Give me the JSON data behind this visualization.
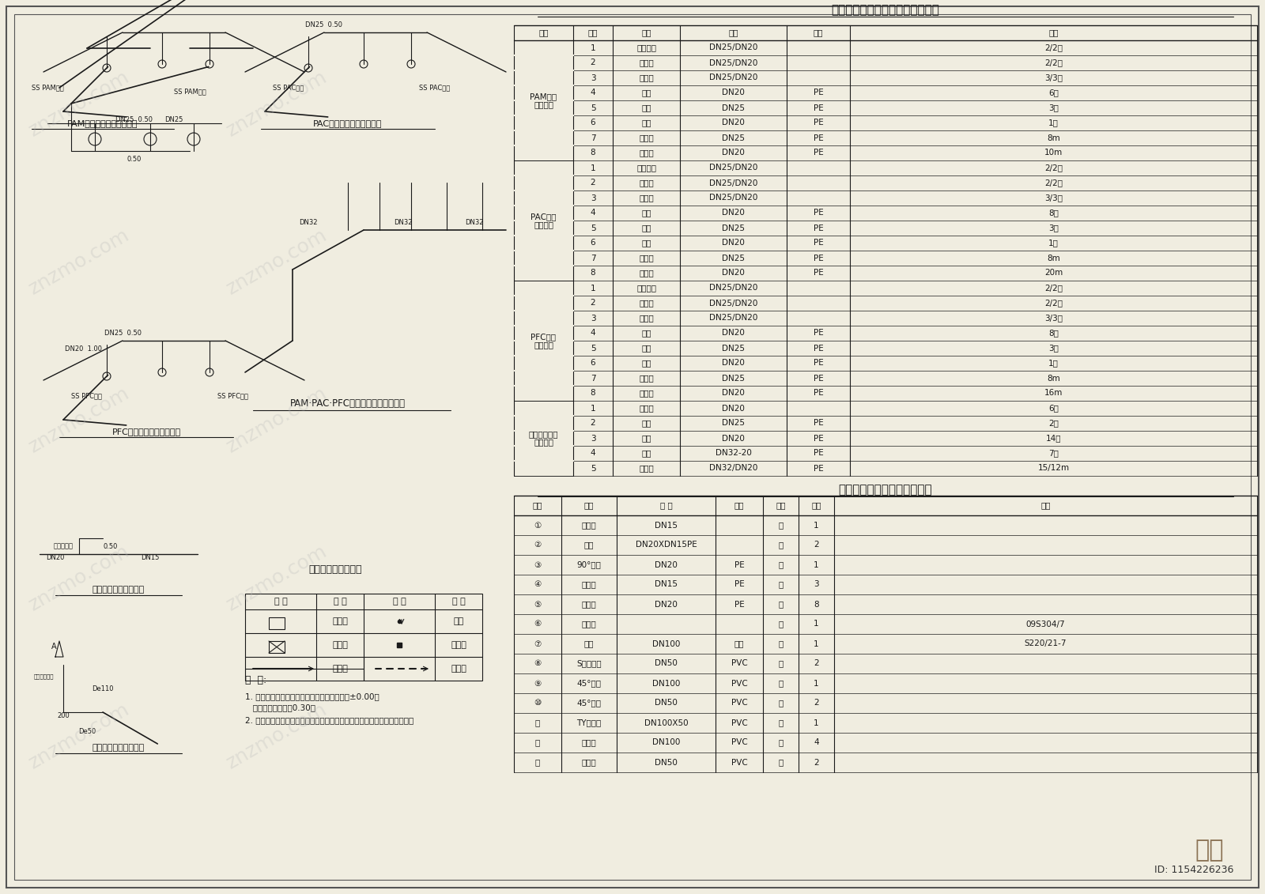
{
  "title": "加药间各管道安装系统主要材料表",
  "title2": "加药间给排水管道主要材料表",
  "bg_color": "#f0ede0",
  "line_color": "#1a1a1a",
  "table1_title": "加药间各管道安装系统主要材料表",
  "table1_headers": [
    "项目",
    "序号",
    "名称",
    "规格",
    "材质",
    "数量"
  ],
  "table1_rows": [
    [
      "PAM输送\n管道系统",
      "1",
      "挠性接头",
      "DN25/DN20",
      "",
      "2/2个"
    ],
    [
      "",
      "2",
      "止回阀",
      "DN25/DN20",
      "",
      "2/2个"
    ],
    [
      "",
      "3",
      "截止阀",
      "DN25/DN20",
      "",
      "3/3个"
    ],
    [
      "",
      "4",
      "弯头",
      "DN20",
      "PE",
      "6个"
    ],
    [
      "",
      "5",
      "三通",
      "DN25",
      "PE",
      "3个"
    ],
    [
      "",
      "6",
      "三通",
      "DN20",
      "PE",
      "1个"
    ],
    [
      "",
      "7",
      "连接管",
      "DN25",
      "PE",
      "8m"
    ],
    [
      "",
      "8",
      "连接管",
      "DN20",
      "PE",
      "10m"
    ],
    [
      "PAC输送\n管道系统",
      "1",
      "挠性接头",
      "DN25/DN20",
      "",
      "2/2个"
    ],
    [
      "",
      "2",
      "止回阀",
      "DN25/DN20",
      "",
      "2/2个"
    ],
    [
      "",
      "3",
      "截止阀",
      "DN25/DN20",
      "",
      "3/3个"
    ],
    [
      "",
      "4",
      "弯头",
      "DN20",
      "PE",
      "8个"
    ],
    [
      "",
      "5",
      "三通",
      "DN25",
      "PE",
      "3个"
    ],
    [
      "",
      "6",
      "三通",
      "DN20",
      "PE",
      "1个"
    ],
    [
      "",
      "7",
      "连接管",
      "DN25",
      "PE",
      "8m"
    ],
    [
      "",
      "8",
      "连接管",
      "DN20",
      "PE",
      "20m"
    ],
    [
      "PFC输送\n管道系统",
      "1",
      "挠性接头",
      "DN25/DN20",
      "",
      "2/2个"
    ],
    [
      "",
      "2",
      "止回阀",
      "DN25/DN20",
      "",
      "2/2个"
    ],
    [
      "",
      "3",
      "截止阀",
      "DN25/DN20",
      "",
      "3/3个"
    ],
    [
      "",
      "4",
      "弯头",
      "DN20",
      "PE",
      "8个"
    ],
    [
      "",
      "5",
      "三通",
      "DN25",
      "PE",
      "3个"
    ],
    [
      "",
      "6",
      "三通",
      "DN20",
      "PE",
      "1个"
    ],
    [
      "",
      "7",
      "连接管",
      "DN25",
      "PE",
      "8m"
    ],
    [
      "",
      "8",
      "连接管",
      "DN20",
      "PE",
      "16m"
    ],
    [
      "药液配制给水\n管道系统",
      "1",
      "截止阀",
      "DN20",
      "",
      "6个"
    ],
    [
      "",
      "2",
      "弯头",
      "DN25",
      "PE",
      "2个"
    ],
    [
      "",
      "3",
      "弯头",
      "DN20",
      "PE",
      "14个"
    ],
    [
      "",
      "4",
      "三通",
      "DN32-20",
      "PE",
      "7个"
    ],
    [
      "",
      "5",
      "连接管",
      "DN32/DN20",
      "PE",
      "15/12m"
    ]
  ],
  "table2_title": "加药间给排水管道主要材料表",
  "table2_headers": [
    "编号",
    "名称",
    "规 格",
    "材料",
    "单位",
    "数量",
    "备注"
  ],
  "table2_rows": [
    [
      "①",
      "水龙头",
      "DN15",
      "",
      "个",
      "1",
      ""
    ],
    [
      "②",
      "三通",
      "DN20XDN15PE",
      "",
      "个",
      "2",
      ""
    ],
    [
      "③",
      "90°弯头",
      "DN20",
      "PE",
      "个",
      "1",
      ""
    ],
    [
      "④",
      "给水管",
      "DN15",
      "PE",
      "米",
      "3",
      ""
    ],
    [
      "⑤",
      "给水管",
      "DN20",
      "PE",
      "米",
      "8",
      ""
    ],
    [
      "⑥",
      "洗手盆",
      "",
      "",
      "个",
      "1",
      "09S304/7"
    ],
    [
      "⑦",
      "地漏",
      "DN100",
      "铸铁",
      "个",
      "1",
      "S220/21-7"
    ],
    [
      "⑧",
      "S型存水管",
      "DN50",
      "PVC",
      "个",
      "2",
      ""
    ],
    [
      "⑨",
      "45°弯头",
      "DN100",
      "PVC",
      "个",
      "1",
      ""
    ],
    [
      "⑩",
      "45°弯头",
      "DN50",
      "PVC",
      "个",
      "2",
      ""
    ],
    [
      "⑪",
      "TY型三通",
      "DN100X50",
      "PVC",
      "个",
      "1",
      ""
    ],
    [
      "⑫",
      "排水管",
      "DN100",
      "PVC",
      "米",
      "4",
      ""
    ],
    [
      "⑬",
      "排水管",
      "DN50",
      "PVC",
      "米",
      "2",
      ""
    ]
  ],
  "watermark": "知末",
  "id_text": "ID: 1154226236"
}
